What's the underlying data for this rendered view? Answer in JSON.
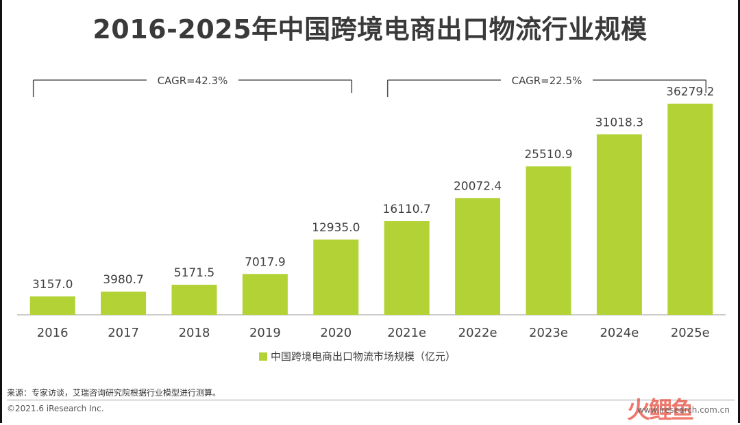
{
  "title": "2016-2025年中国跨境电商出口物流行业规模",
  "chart_data": {
    "type": "bar",
    "categories": [
      "2016",
      "2017",
      "2018",
      "2019",
      "2020",
      "2021e",
      "2022e",
      "2023e",
      "2024e",
      "2025e"
    ],
    "values": [
      3157.0,
      3980.7,
      5171.5,
      7017.9,
      12935.0,
      16110.7,
      20072.4,
      25510.9,
      31018.3,
      36279.2
    ],
    "value_labels": [
      "3157.0",
      "3980.7",
      "5171.5",
      "7017.9",
      "12935.0",
      "16110.7",
      "20072.4",
      "25510.9",
      "31018.3",
      "36279.2"
    ],
    "series": [
      {
        "name": "中国跨境电商出口物流市场规模（亿元）"
      }
    ],
    "bar_color": "#b2d235",
    "ylim": [
      0,
      40000
    ],
    "grid": false,
    "legend": "bottom-center",
    "annotations": [
      {
        "text": "CAGR=42.3%",
        "from": "2016",
        "to": "2020"
      },
      {
        "text": "CAGR=22.5%",
        "from": "2021e",
        "to": "2025e"
      }
    ]
  },
  "footer": {
    "source": "来源：专家访谈，艾瑞咨询研究院根据行业模型进行测算。",
    "copyright": "©2021.6 iResearch Inc.",
    "watermark": "火鲤鱼",
    "url": "www.iresearch.com.cn"
  }
}
